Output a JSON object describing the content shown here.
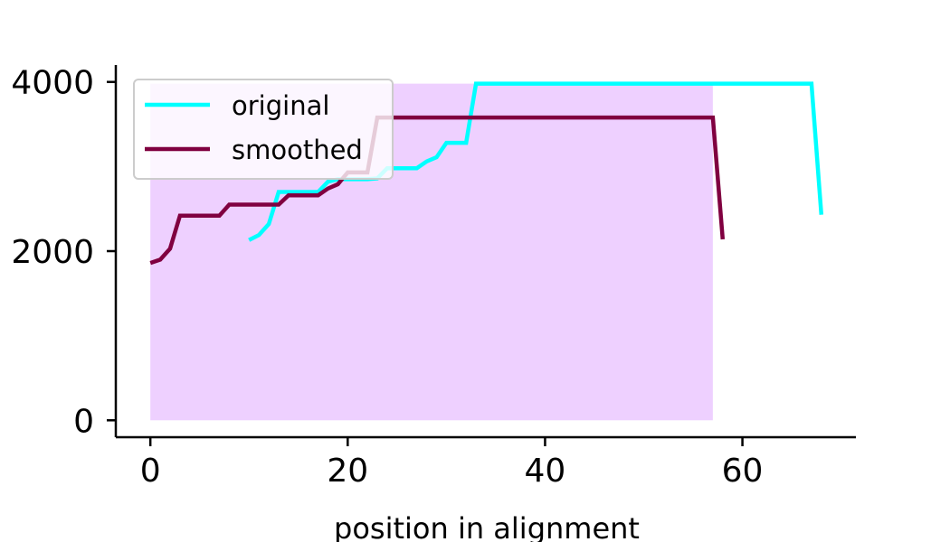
{
  "chart_data": {
    "type": "line",
    "title": "",
    "xlabel": "position in alignment",
    "ylabel": "",
    "xlim": [
      -3.5,
      71.5
    ],
    "ylim": [
      -200,
      4200
    ],
    "xticks": [
      0,
      20,
      40,
      60
    ],
    "xtick_labels": [
      "0",
      "20",
      "40",
      "60"
    ],
    "yticks": [
      0,
      2000,
      4000
    ],
    "ytick_labels": [
      "0",
      "2000",
      "4000"
    ],
    "grid": false,
    "legend_position": "upper-left",
    "shaded_region": {
      "x": [
        0,
        57
      ],
      "y": [
        0,
        3980
      ],
      "color": "#eed0ff"
    },
    "series": [
      {
        "name": "original",
        "color": "#00ffff",
        "x": [
          10,
          11,
          12,
          13,
          14,
          15,
          16,
          17,
          18,
          19,
          20,
          21,
          22,
          23,
          24,
          25,
          26,
          27,
          28,
          29,
          30,
          31,
          32,
          33,
          34,
          35,
          36,
          37,
          38,
          39,
          40,
          41,
          42,
          43,
          44,
          45,
          46,
          47,
          48,
          49,
          50,
          51,
          52,
          53,
          54,
          55,
          56,
          57,
          58,
          59,
          60,
          61,
          62,
          63,
          64,
          65,
          66,
          67,
          68
        ],
        "y": [
          2130,
          2190,
          2320,
          2700,
          2700,
          2700,
          2700,
          2700,
          2820,
          2850,
          2850,
          2850,
          2850,
          2860,
          2980,
          2980,
          2980,
          2980,
          3060,
          3110,
          3280,
          3280,
          3280,
          3980,
          3980,
          3980,
          3980,
          3980,
          3980,
          3980,
          3980,
          3980,
          3980,
          3980,
          3980,
          3980,
          3980,
          3980,
          3980,
          3980,
          3980,
          3980,
          3980,
          3980,
          3980,
          3980,
          3980,
          3980,
          3980,
          3980,
          3980,
          3980,
          3980,
          3980,
          3980,
          3980,
          3980,
          3980,
          2430
        ]
      },
      {
        "name": "smoothed",
        "color": "#800040",
        "x": [
          0,
          1,
          2,
          3,
          4,
          5,
          6,
          7,
          8,
          9,
          10,
          11,
          12,
          13,
          14,
          15,
          16,
          17,
          18,
          19,
          20,
          21,
          22,
          23,
          24,
          25,
          26,
          27,
          28,
          29,
          30,
          31,
          32,
          33,
          34,
          35,
          36,
          37,
          38,
          39,
          40,
          41,
          42,
          43,
          44,
          45,
          46,
          47,
          48,
          49,
          50,
          51,
          52,
          53,
          54,
          55,
          56,
          57,
          58
        ],
        "y": [
          1860,
          1900,
          2030,
          2420,
          2420,
          2420,
          2420,
          2420,
          2550,
          2550,
          2550,
          2550,
          2550,
          2550,
          2660,
          2660,
          2660,
          2660,
          2740,
          2790,
          2930,
          2930,
          2930,
          3580,
          3580,
          3580,
          3580,
          3580,
          3580,
          3580,
          3580,
          3580,
          3580,
          3580,
          3580,
          3580,
          3580,
          3580,
          3580,
          3580,
          3580,
          3580,
          3580,
          3580,
          3580,
          3580,
          3580,
          3580,
          3580,
          3580,
          3580,
          3580,
          3580,
          3580,
          3580,
          3580,
          3580,
          3580,
          2140
        ]
      }
    ]
  }
}
